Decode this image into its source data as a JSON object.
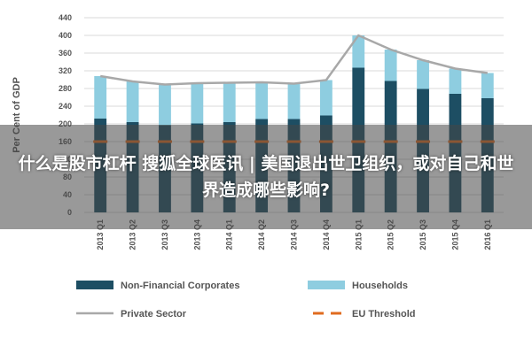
{
  "banner": {
    "title": "什么是股市杠杆 搜狐全球医讯 | 美国退出世卫组织，或对自己和世界造成哪些影响?"
  },
  "chart_data": {
    "type": "bar",
    "stacked": true,
    "ylabel": "Per Cent of GDP",
    "xlabel": "",
    "ylim": [
      0,
      440
    ],
    "yticks": [
      0,
      40,
      80,
      120,
      160,
      200,
      240,
      280,
      320,
      360,
      400,
      440
    ],
    "grid": true,
    "legend_position": "bottom",
    "categories": [
      "2013 Q1",
      "2013 Q2",
      "2013 Q3",
      "2013 Q4",
      "2014 Q1",
      "2014 Q2",
      "2014 Q3",
      "2014 Q4",
      "2015 Q1",
      "2015 Q2",
      "2015 Q3",
      "2015 Q4",
      "2016 Q1"
    ],
    "series": [
      {
        "name": "Non-Financial Corporates",
        "kind": "bar",
        "color": "#1d4e63",
        "values": [
          212,
          204,
          197,
          201,
          204,
          211,
          211,
          219,
          327,
          297,
          279,
          268,
          258
        ]
      },
      {
        "name": "Households",
        "kind": "bar",
        "color": "#8ecde0",
        "values": [
          96,
          92,
          92,
          91,
          89,
          83,
          80,
          80,
          73,
          71,
          65,
          57,
          57
        ]
      },
      {
        "name": "Private Sector",
        "kind": "line",
        "color": "#a8a8a8",
        "values": [
          308,
          296,
          289,
          292,
          293,
          294,
          291,
          299,
          400,
          368,
          344,
          325,
          315
        ]
      },
      {
        "name": "EU Threshold",
        "kind": "line-dashed",
        "color": "#e06b1f",
        "values": [
          160,
          160,
          160,
          160,
          160,
          160,
          160,
          160,
          160,
          160,
          160,
          160,
          160
        ]
      }
    ]
  }
}
